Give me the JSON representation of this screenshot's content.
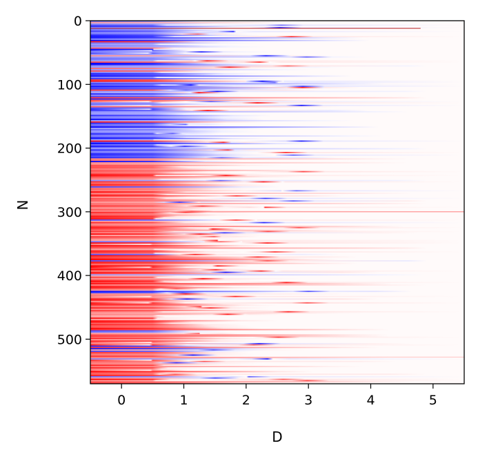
{
  "chart_data": {
    "type": "heatmap",
    "title": "",
    "xlabel": "D",
    "ylabel": "N",
    "xlim": [
      -0.5,
      5.5
    ],
    "ylim": [
      570,
      0
    ],
    "x_ticks": [
      0,
      1,
      2,
      3,
      4,
      5
    ],
    "y_ticks": [
      0,
      100,
      200,
      300,
      400,
      500
    ],
    "x_tick_labels": [
      "0",
      "1",
      "2",
      "3",
      "4",
      "5"
    ],
    "y_tick_labels": [
      "0",
      "100",
      "200",
      "300",
      "400",
      "500"
    ],
    "n_rows": 570,
    "colormap": "bwr",
    "colors": {
      "negative": "#0000ff",
      "zero": "#ffffff",
      "positive": "#ff0000"
    },
    "color_range": [
      -1,
      1
    ],
    "grid": false,
    "description_of_values": "Row values are mostly negative (blue) for N from 0 to about 215 and mostly positive (red) for N from about 215 to 570; magnitude is strongest near D=0 and fades with D, reaching zero beyond about D=4.5 for most rows; a few isolated rows (e.g. near N=300 and N=530) extend weakly to D=5.5."
  }
}
